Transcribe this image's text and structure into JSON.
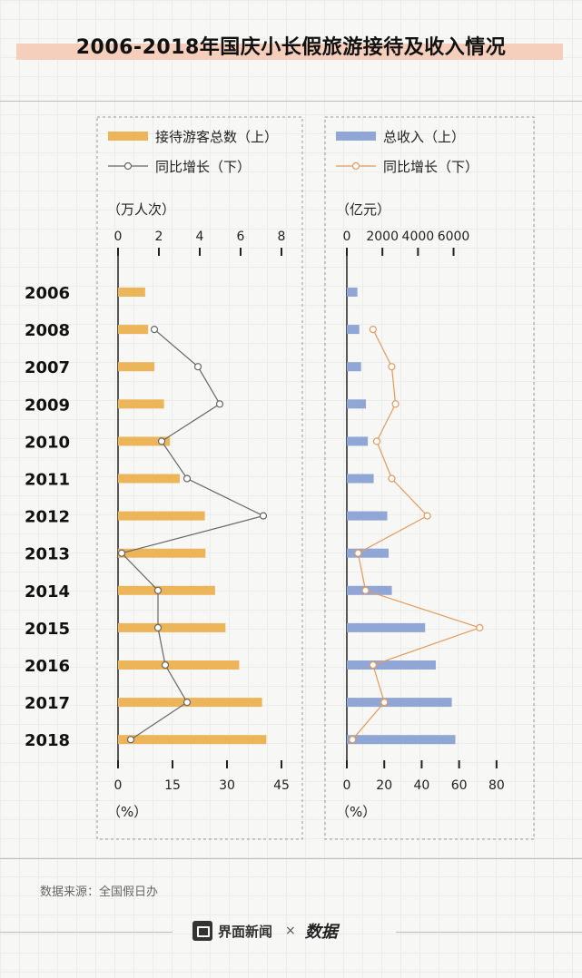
{
  "title": "2006-2018年国庆小长假旅游接待及收入情况",
  "source": "数据来源：全国假日办",
  "footer": {
    "brand": "界面新闻",
    "cross": "×",
    "datamine": "数据"
  },
  "colors": {
    "visitors_bar": "#edb55a",
    "revenue_bar": "#90a6d4",
    "visitors_line": "#666666",
    "revenue_line": "#e49a5c"
  },
  "chart_data": [
    {
      "type": "bar",
      "categories": [
        "2006",
        "2008",
        "2007",
        "2009",
        "2010",
        "2011",
        "2012",
        "2013",
        "2014",
        "2015",
        "2016",
        "2017",
        "2018"
      ],
      "legend": [
        "接待游客总数（上）",
        "同比增长（下）"
      ],
      "top_axis_label": "（万人次）",
      "top_ticks": [
        0,
        2,
        4,
        6,
        8
      ],
      "top_lim": [
        0,
        8
      ],
      "bottom_axis_label": "（%）",
      "bottom_ticks": [
        0,
        15,
        30,
        45
      ],
      "bottom_lim": [
        0,
        45
      ],
      "series": [
        {
          "name": "接待游客总数（上）",
          "type": "bar",
          "values": [
            1.33,
            1.47,
            1.78,
            2.25,
            2.54,
            3.02,
            4.25,
            4.28,
            4.75,
            5.26,
            5.93,
            7.05,
            7.26
          ]
        },
        {
          "name": "同比增长（下）",
          "type": "line",
          "values": [
            null,
            10,
            22,
            28,
            12,
            19,
            40,
            1,
            11,
            11,
            13,
            19,
            3.5
          ]
        }
      ]
    },
    {
      "type": "bar",
      "categories": [
        "2006",
        "2008",
        "2007",
        "2009",
        "2010",
        "2011",
        "2012",
        "2013",
        "2014",
        "2015",
        "2016",
        "2017",
        "2018"
      ],
      "legend": [
        "总收入（上）",
        "同比增长（下）"
      ],
      "top_axis_label": "（亿元）",
      "top_ticks": [
        0,
        2000,
        4000,
        6000
      ],
      "top_lim": [
        0,
        7300
      ],
      "bottom_axis_label": "（%）",
      "bottom_ticks": [
        0,
        20,
        40,
        60,
        80
      ],
      "bottom_lim": [
        0,
        82
      ],
      "series": [
        {
          "name": "总收入（上）",
          "type": "bar",
          "values": [
            594,
            700,
            800,
            1070,
            1180,
            1510,
            2270,
            2350,
            2530,
            4400,
            5000,
            5900,
            6100
          ]
        },
        {
          "name": "同比增长（下）",
          "type": "line",
          "values": [
            null,
            14,
            24,
            26,
            16,
            24,
            43,
            6,
            10,
            71,
            14,
            20,
            3
          ]
        }
      ]
    }
  ]
}
